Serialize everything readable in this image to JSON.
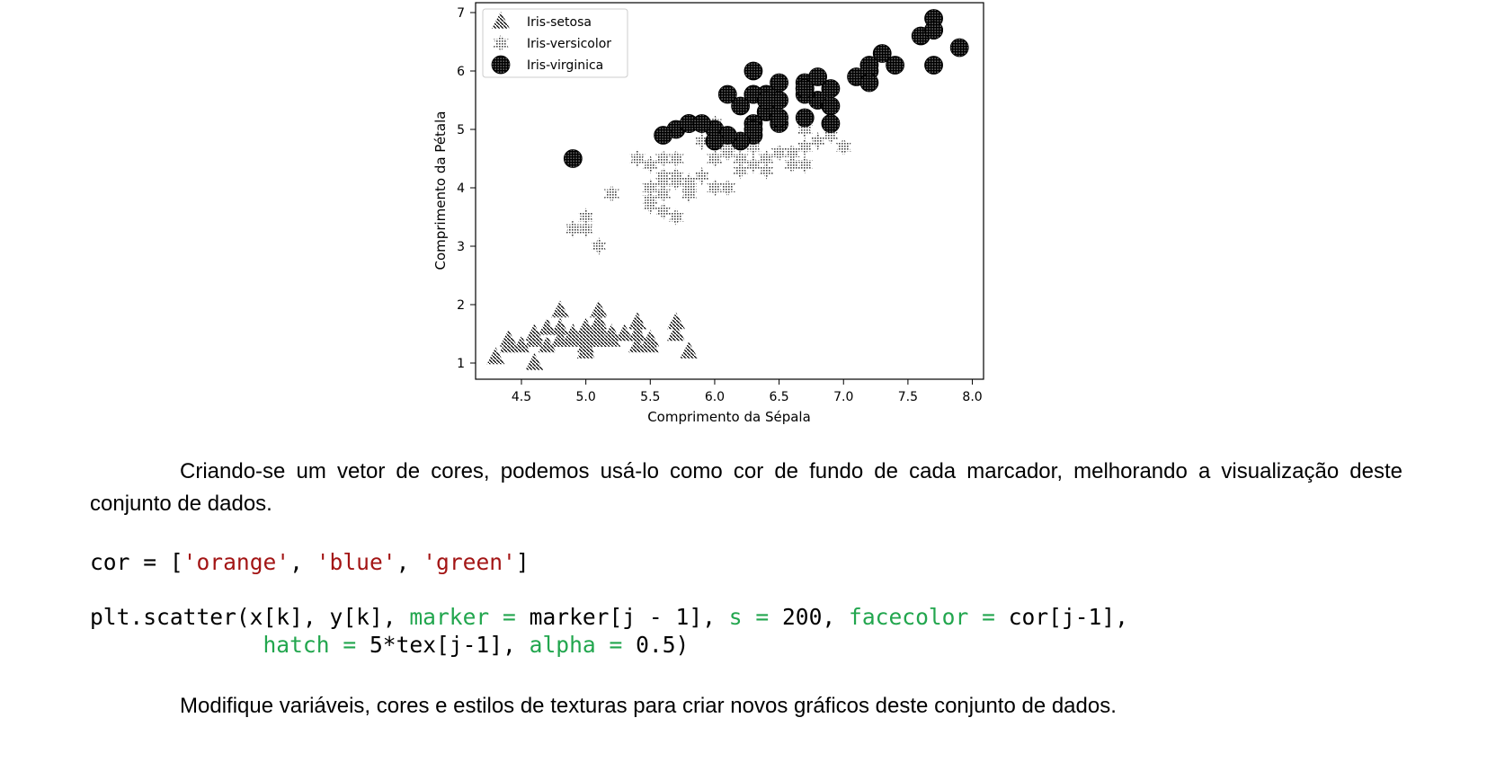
{
  "chart_data": {
    "type": "scatter",
    "xlabel": "Comprimento da Sépala",
    "ylabel": "Comprimento da Pétala",
    "xlim": [
      4.2,
      8.1
    ],
    "ylim": [
      0.7,
      7.2
    ],
    "xticks": [
      "4.5",
      "5.0",
      "5.5",
      "6.0",
      "6.5",
      "7.0",
      "7.5",
      "8.0"
    ],
    "yticks": [
      "1",
      "2",
      "3",
      "4",
      "5",
      "6",
      "7"
    ],
    "legend_position": "top-left",
    "series": [
      {
        "name": "Iris-setosa",
        "marker": "triangle-hatched",
        "points": [
          [
            5.1,
            1.4
          ],
          [
            4.9,
            1.4
          ],
          [
            4.7,
            1.3
          ],
          [
            4.6,
            1.5
          ],
          [
            5.0,
            1.4
          ],
          [
            5.4,
            1.7
          ],
          [
            4.6,
            1.4
          ],
          [
            5.0,
            1.5
          ],
          [
            4.4,
            1.4
          ],
          [
            4.9,
            1.5
          ],
          [
            5.4,
            1.5
          ],
          [
            4.8,
            1.6
          ],
          [
            4.8,
            1.4
          ],
          [
            4.3,
            1.1
          ],
          [
            5.8,
            1.2
          ],
          [
            5.7,
            1.5
          ],
          [
            5.4,
            1.3
          ],
          [
            5.1,
            1.4
          ],
          [
            5.7,
            1.7
          ],
          [
            5.1,
            1.5
          ],
          [
            5.4,
            1.7
          ],
          [
            5.1,
            1.5
          ],
          [
            4.6,
            1.0
          ],
          [
            5.1,
            1.7
          ],
          [
            4.8,
            1.9
          ],
          [
            5.0,
            1.6
          ],
          [
            5.0,
            1.6
          ],
          [
            5.2,
            1.5
          ],
          [
            5.2,
            1.4
          ],
          [
            4.7,
            1.6
          ],
          [
            4.8,
            1.6
          ],
          [
            5.4,
            1.5
          ],
          [
            5.2,
            1.5
          ],
          [
            5.5,
            1.4
          ],
          [
            4.9,
            1.5
          ],
          [
            5.0,
            1.2
          ],
          [
            5.5,
            1.3
          ],
          [
            4.9,
            1.5
          ],
          [
            4.4,
            1.3
          ],
          [
            5.1,
            1.5
          ],
          [
            5.0,
            1.3
          ],
          [
            4.5,
            1.3
          ],
          [
            4.4,
            1.3
          ],
          [
            5.0,
            1.6
          ],
          [
            5.1,
            1.9
          ],
          [
            4.8,
            1.4
          ],
          [
            5.1,
            1.6
          ],
          [
            4.6,
            1.4
          ],
          [
            5.3,
            1.5
          ],
          [
            5.0,
            1.4
          ]
        ]
      },
      {
        "name": "Iris-versicolor",
        "marker": "star-dotted",
        "points": [
          [
            7.0,
            4.7
          ],
          [
            6.4,
            4.5
          ],
          [
            6.9,
            4.9
          ],
          [
            5.5,
            4.0
          ],
          [
            6.5,
            4.6
          ],
          [
            5.7,
            4.5
          ],
          [
            6.3,
            4.7
          ],
          [
            4.9,
            3.3
          ],
          [
            6.6,
            4.6
          ],
          [
            5.2,
            3.9
          ],
          [
            5.0,
            3.5
          ],
          [
            5.9,
            4.2
          ],
          [
            6.0,
            4.0
          ],
          [
            6.1,
            4.7
          ],
          [
            5.6,
            3.6
          ],
          [
            6.7,
            4.4
          ],
          [
            5.6,
            4.5
          ],
          [
            5.8,
            4.1
          ],
          [
            6.2,
            4.5
          ],
          [
            5.6,
            3.9
          ],
          [
            5.9,
            4.8
          ],
          [
            6.1,
            4.0
          ],
          [
            6.3,
            4.9
          ],
          [
            6.1,
            4.7
          ],
          [
            6.4,
            4.3
          ],
          [
            6.6,
            4.4
          ],
          [
            6.8,
            4.8
          ],
          [
            6.7,
            5.0
          ],
          [
            6.0,
            4.5
          ],
          [
            5.7,
            3.5
          ],
          [
            5.5,
            3.8
          ],
          [
            5.5,
            3.7
          ],
          [
            5.8,
            3.9
          ],
          [
            6.0,
            5.1
          ],
          [
            5.4,
            4.5
          ],
          [
            6.0,
            4.5
          ],
          [
            6.7,
            4.7
          ],
          [
            6.3,
            4.4
          ],
          [
            5.6,
            4.1
          ],
          [
            5.5,
            4.0
          ],
          [
            5.5,
            4.4
          ],
          [
            6.1,
            4.6
          ],
          [
            5.8,
            4.0
          ],
          [
            5.0,
            3.3
          ],
          [
            5.6,
            4.2
          ],
          [
            5.7,
            4.2
          ],
          [
            5.7,
            4.2
          ],
          [
            6.2,
            4.3
          ],
          [
            5.1,
            3.0
          ],
          [
            5.7,
            4.1
          ]
        ]
      },
      {
        "name": "Iris-virginica",
        "marker": "circle-grid",
        "points": [
          [
            6.3,
            6.0
          ],
          [
            5.8,
            5.1
          ],
          [
            7.1,
            5.9
          ],
          [
            6.3,
            5.6
          ],
          [
            6.5,
            5.8
          ],
          [
            7.6,
            6.6
          ],
          [
            4.9,
            4.5
          ],
          [
            7.3,
            6.3
          ],
          [
            6.7,
            5.8
          ],
          [
            7.2,
            6.1
          ],
          [
            6.5,
            5.1
          ],
          [
            6.4,
            5.3
          ],
          [
            6.8,
            5.5
          ],
          [
            5.7,
            5.0
          ],
          [
            5.8,
            5.1
          ],
          [
            6.4,
            5.3
          ],
          [
            6.5,
            5.5
          ],
          [
            7.7,
            6.7
          ],
          [
            7.7,
            6.9
          ],
          [
            6.0,
            5.0
          ],
          [
            6.9,
            5.7
          ],
          [
            5.6,
            4.9
          ],
          [
            7.7,
            6.7
          ],
          [
            6.3,
            4.9
          ],
          [
            6.7,
            5.7
          ],
          [
            7.2,
            6.0
          ],
          [
            6.2,
            4.8
          ],
          [
            6.1,
            4.9
          ],
          [
            6.4,
            5.6
          ],
          [
            7.2,
            5.8
          ],
          [
            7.4,
            6.1
          ],
          [
            7.9,
            6.4
          ],
          [
            6.4,
            5.6
          ],
          [
            6.3,
            5.1
          ],
          [
            6.1,
            5.6
          ],
          [
            7.7,
            6.1
          ],
          [
            6.3,
            5.6
          ],
          [
            6.4,
            5.5
          ],
          [
            6.0,
            4.8
          ],
          [
            6.9,
            5.4
          ],
          [
            6.7,
            5.6
          ],
          [
            6.9,
            5.1
          ],
          [
            5.8,
            5.1
          ],
          [
            6.8,
            5.9
          ],
          [
            6.7,
            5.7
          ],
          [
            6.7,
            5.2
          ],
          [
            6.3,
            5.0
          ],
          [
            6.5,
            5.2
          ],
          [
            6.2,
            5.4
          ],
          [
            5.9,
            5.1
          ]
        ]
      }
    ]
  },
  "text": {
    "paragraph1": "Criando-se um vetor de cores, podemos usá-lo como cor de fundo de cada marcador, melhorando a visualização deste conjunto de dados.",
    "paragraph2": "Modifique variáveis, cores e estilos de texturas para criar novos gráficos deste conjunto de dados."
  },
  "code": {
    "line1": {
      "a": "cor = [",
      "s1": "'orange'",
      "c1": ", ",
      "s2": "'blue'",
      "c2": ", ",
      "s3": "'green'",
      "end": "]"
    },
    "line2": {
      "a": "plt.scatter(x[k], y[k], ",
      "k1": "marker =",
      "b": " marker[j - 1], ",
      "k2": "s =",
      "c": " 200, ",
      "k3": "facecolor =",
      "d": " cor[j-1],"
    },
    "line3": {
      "indent": "             ",
      "k4": "hatch =",
      "e": " 5*tex[j-1], ",
      "k5": "alpha =",
      "f": " 0.5)"
    }
  }
}
